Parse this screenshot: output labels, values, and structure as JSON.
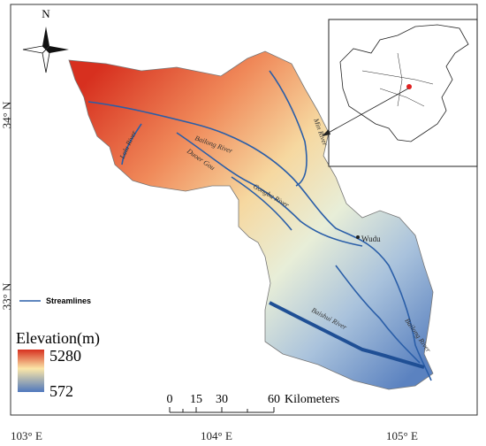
{
  "north_arrow": {
    "label": "N"
  },
  "grid_labels": {
    "longitude": [
      "103° E",
      "104° E",
      "105° E"
    ],
    "latitude": [
      "34° N",
      "33° N"
    ]
  },
  "rivers": [
    "Min River",
    "Bailong River",
    "Duoer Gou",
    "Lalu River",
    "Gongba River",
    "Baishui River",
    "Bailong River"
  ],
  "places": [
    "Wudu"
  ],
  "legend": {
    "streamlines": "Streamlines",
    "elevation_title": "Elevation(m)",
    "elevation_max": 5280,
    "elevation_min": 572
  },
  "scale_bar": {
    "labels": [
      0,
      15,
      30,
      60
    ],
    "unit": "Kilometers"
  }
}
